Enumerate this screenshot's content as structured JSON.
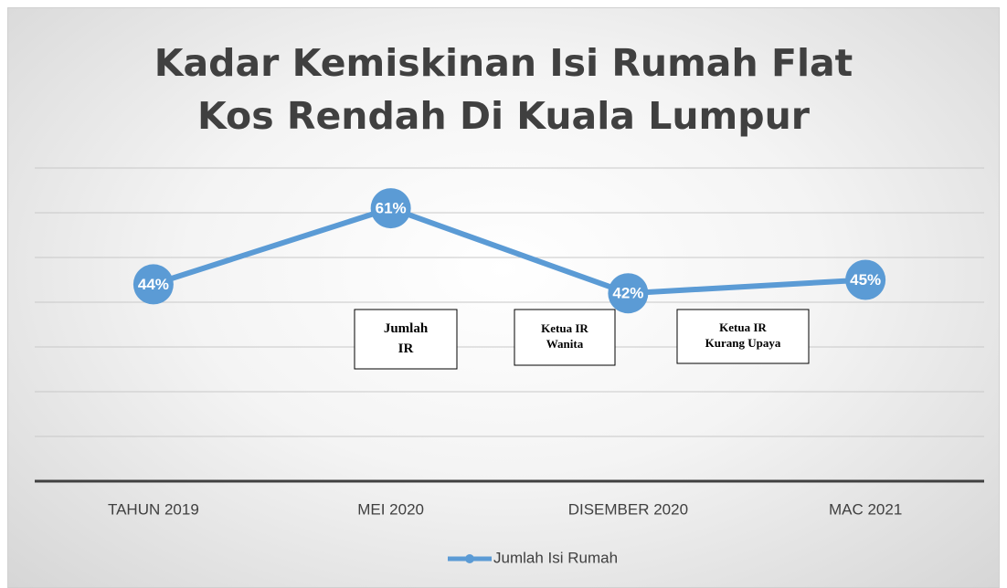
{
  "chart_data": {
    "type": "line",
    "title": "Kadar Kemiskinan Isi Rumah Flat Kos Rendah Di Kuala Lumpur",
    "categories": [
      "TAHUN 2019",
      "MEI 2020",
      "DISEMBER 2020",
      "MAC 2021"
    ],
    "series": [
      {
        "name": "Jumlah Isi Rumah",
        "color": "#5b9bd5",
        "values": [
          44,
          61,
          42,
          45
        ],
        "value_labels": [
          "44%",
          "61%",
          "42%",
          "45%"
        ]
      }
    ],
    "ylim": [
      0,
      70
    ],
    "yticks": [
      0,
      10,
      20,
      30,
      40,
      50,
      60,
      70
    ],
    "grid": true,
    "legend": "bottom",
    "annotations": [
      [
        "Jumlah",
        "IR"
      ],
      [
        "Ketua IR",
        "Wanita"
      ],
      [
        "Ketua IR",
        "Kurang Upaya"
      ]
    ]
  }
}
